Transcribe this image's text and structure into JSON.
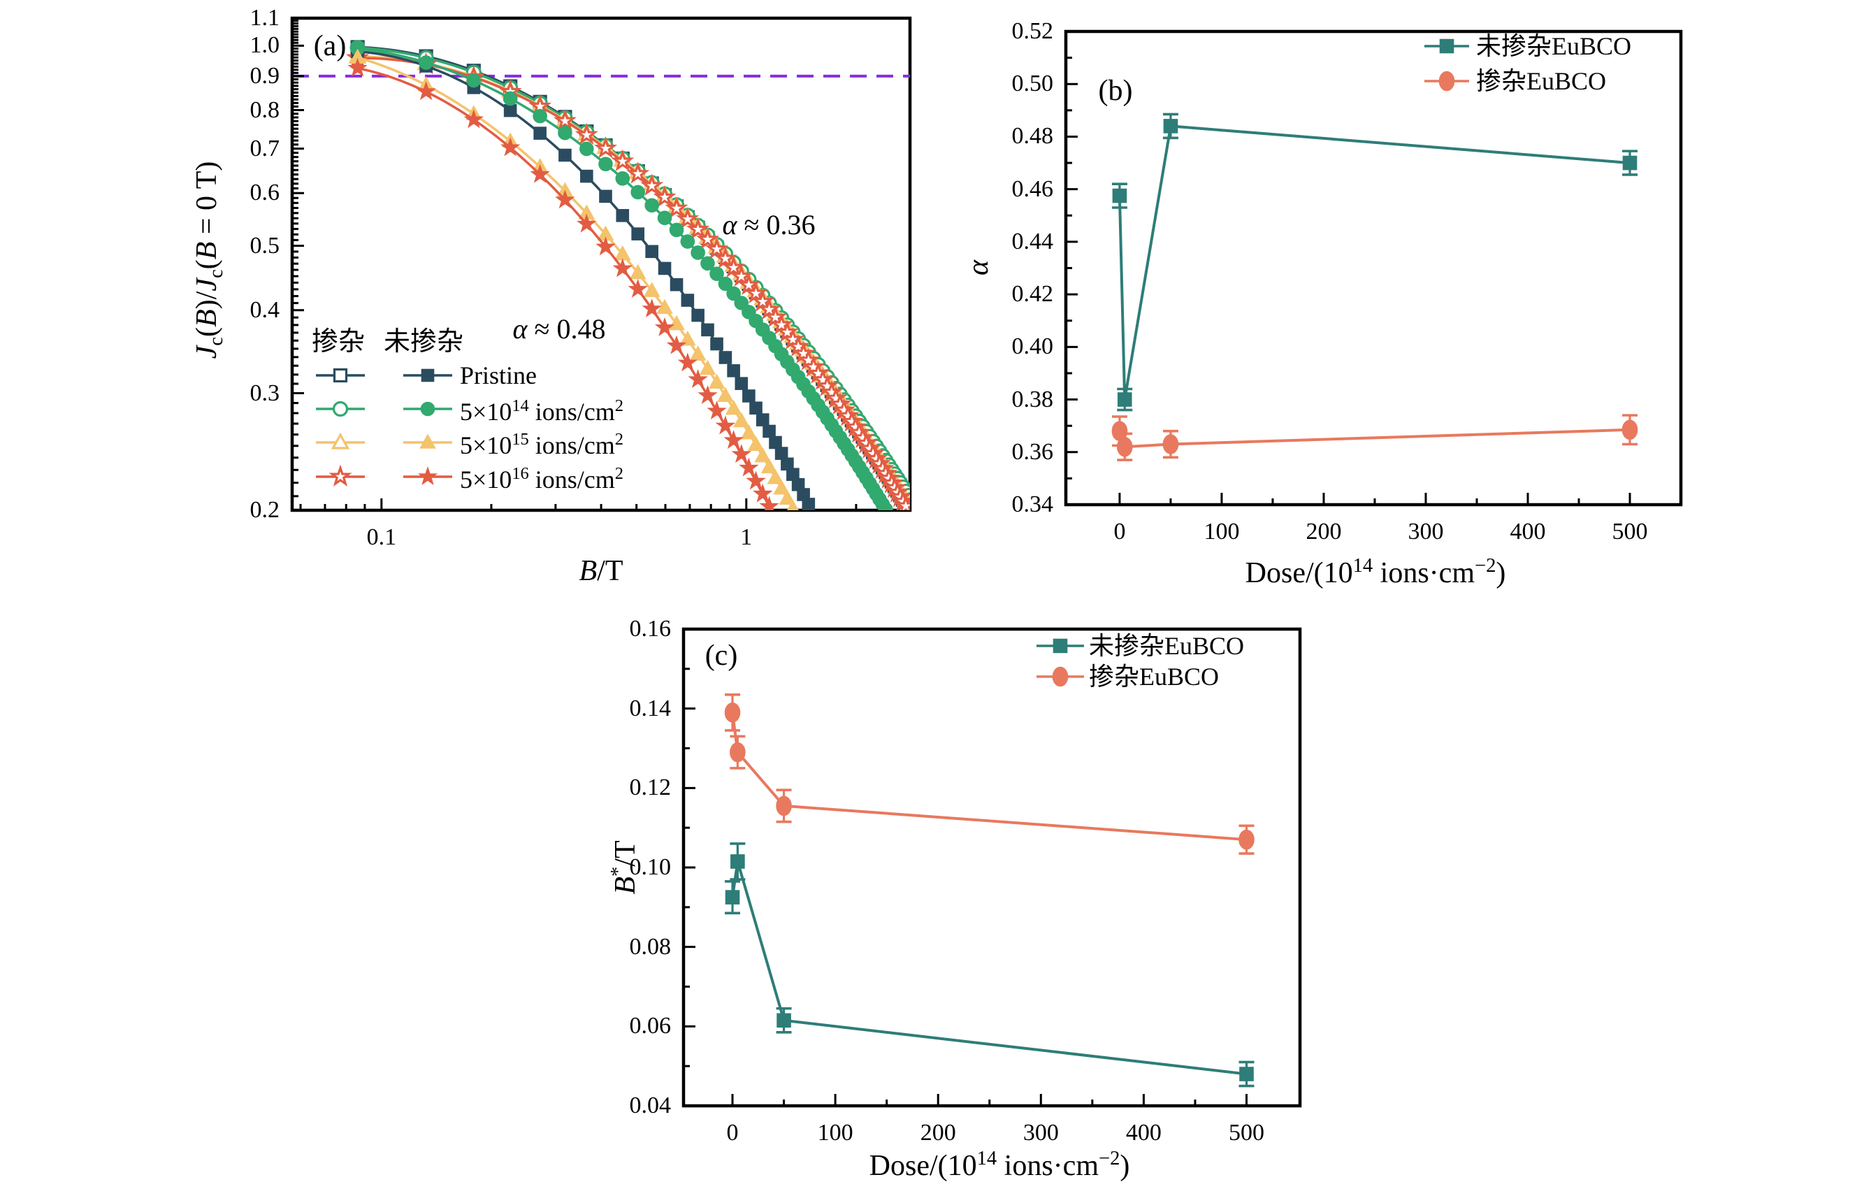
{
  "figure": {
    "background": "#ffffff",
    "description_note": "Three-panel scientific figure: (a) normalized critical current vs magnetic field, (b) alpha exponent vs dose, (c) B* vs dose"
  },
  "colors": {
    "teal": "#2E7D78",
    "orange": "#E8795E",
    "navy": "#2B4C60",
    "green": "#31A96F",
    "yellow": "#F4C36B",
    "red": "#E25C43",
    "purple": "#8A2BE2",
    "axis": "#000000"
  },
  "chart_data": [
    {
      "id": "a",
      "type": "line",
      "panel_label": "(a)",
      "xscale": "log",
      "yscale": "log",
      "xlabel": "B/T",
      "xlabel_rich": [
        {
          "t": "B",
          "i": 1
        },
        {
          "t": "/T"
        }
      ],
      "ylabel": "Jc(B)/Jc(B = 0 T)",
      "ylabel_rich": [
        {
          "t": "J",
          "i": 1
        },
        {
          "t": "c",
          "sub": 1
        },
        {
          "t": "("
        },
        {
          "t": "B",
          "i": 1
        },
        {
          "t": ")/"
        },
        {
          "t": "J",
          "i": 1
        },
        {
          "t": "c",
          "sub": 1
        },
        {
          "t": "("
        },
        {
          "t": "B",
          "i": 1
        },
        {
          "t": " = 0 T)"
        }
      ],
      "xlim": [
        0.0569,
        2.81
      ],
      "ylim": [
        0.2,
        1.1
      ],
      "x_major_ticks": [
        {
          "v": 0.1,
          "label": "0.1"
        },
        {
          "v": 1,
          "label": "1"
        }
      ],
      "x_minor_ticks": [
        0.06,
        0.07,
        0.08,
        0.09,
        0.2,
        0.3,
        0.4,
        0.5,
        0.6,
        0.7,
        0.8,
        0.9,
        2
      ],
      "y_major_ticks": [
        {
          "v": 1.1,
          "label": "1.1"
        },
        {
          "v": 1.0,
          "label": "1.0"
        },
        {
          "v": 0.9,
          "label": "0.9"
        },
        {
          "v": 0.8,
          "label": "0.8"
        },
        {
          "v": 0.7,
          "label": "0.7"
        },
        {
          "v": 0.6,
          "label": "0.6"
        },
        {
          "v": 0.5,
          "label": "0.5"
        },
        {
          "v": 0.4,
          "label": "0.4"
        },
        {
          "v": 0.3,
          "label": "0.3"
        },
        {
          "v": 0.2,
          "label": "0.2"
        }
      ],
      "y_minor_step": 0.01,
      "hline": {
        "y": 0.9,
        "style": "dashed",
        "color_key": "purple"
      },
      "annotations": [
        {
          "text": "α ≈ 0.36",
          "rich": [
            {
              "t": "α",
              "i": 1
            },
            {
              "t": " ≈ 0.36"
            }
          ]
        },
        {
          "text": "α ≈ 0.48",
          "rich": [
            {
              "t": "α",
              "i": 1
            },
            {
              "t": " ≈ 0.48"
            }
          ]
        }
      ],
      "legend": {
        "headers": [
          "掺杂",
          "未掺杂"
        ],
        "rows": [
          {
            "label": "Pristine",
            "label_rich": [
              {
                "t": "Pristine"
              }
            ]
          },
          {
            "label": "5×10^14 ions/cm^2",
            "label_rich": [
              {
                "t": "5×10"
              },
              {
                "t": "14",
                "sup": 1
              },
              {
                "t": " ions/cm"
              },
              {
                "t": "2",
                "sup": 1
              }
            ]
          },
          {
            "label": "5×10^15 ions/cm^2",
            "label_rich": [
              {
                "t": "5×10"
              },
              {
                "t": "15",
                "sup": 1
              },
              {
                "t": " ions/cm"
              },
              {
                "t": "2",
                "sup": 1
              }
            ]
          },
          {
            "label": "5×10^16 ions/cm^2",
            "label_rich": [
              {
                "t": "5×10"
              },
              {
                "t": "16",
                "sup": 1
              },
              {
                "t": " ions/cm"
              },
              {
                "t": "2",
                "sup": 1
              }
            ]
          }
        ]
      },
      "series": [
        {
          "name": "doped-pristine",
          "marker": "square",
          "fill": "open",
          "color_key": "navy",
          "anchors": [
            [
              0.086,
              0.995
            ],
            [
              0.195,
              0.9
            ],
            [
              2.8,
              0.2
            ]
          ]
        },
        {
          "name": "doped-5e14",
          "marker": "circle",
          "fill": "open",
          "color_key": "green",
          "anchors": [
            [
              0.086,
              0.993
            ],
            [
              0.19,
              0.9
            ],
            [
              2.95,
              0.2
            ]
          ]
        },
        {
          "name": "doped-5e15",
          "marker": "triangle",
          "fill": "open",
          "color_key": "yellow",
          "anchors": [
            [
              0.086,
              0.963
            ],
            [
              0.178,
              0.9
            ],
            [
              2.85,
              0.2
            ]
          ]
        },
        {
          "name": "doped-5e16",
          "marker": "star",
          "fill": "open",
          "color_key": "red",
          "anchors": [
            [
              0.086,
              0.958
            ],
            [
              0.175,
              0.9
            ],
            [
              2.78,
              0.2
            ]
          ]
        },
        {
          "name": "undoped-pristine",
          "marker": "square",
          "fill": "filled",
          "color_key": "navy",
          "anchors": [
            [
              0.086,
              0.98
            ],
            [
              0.155,
              0.9
            ],
            [
              1.51,
              0.2
            ]
          ]
        },
        {
          "name": "undoped-5e14",
          "marker": "circle",
          "fill": "filled",
          "color_key": "green",
          "anchors": [
            [
              0.086,
              0.99
            ],
            [
              0.168,
              0.9
            ],
            [
              2.42,
              0.2
            ]
          ]
        },
        {
          "name": "undoped-5e15",
          "marker": "triangle",
          "fill": "filled",
          "color_key": "yellow",
          "anchors": [
            [
              0.086,
              0.96
            ],
            [
              0.118,
              0.9
            ],
            [
              1.35,
              0.2
            ]
          ]
        },
        {
          "name": "undoped-5e16",
          "marker": "star",
          "fill": "filled",
          "color_key": "red",
          "anchors": [
            [
              0.086,
              0.925
            ],
            [
              0.104,
              0.9
            ],
            [
              1.17,
              0.2
            ]
          ]
        }
      ],
      "marker_step_B": 0.0465
    },
    {
      "id": "b",
      "type": "line",
      "panel_label": "(b)",
      "xscale": "linear",
      "yscale": "linear",
      "xlabel": "Dose/(10^14 ions·cm^-2)",
      "xlabel_rich": [
        {
          "t": "Dose/(10"
        },
        {
          "t": "14",
          "sup": 1
        },
        {
          "t": " ions·cm"
        },
        {
          "t": "−2",
          "sup": 1
        },
        {
          "t": ")"
        }
      ],
      "ylabel": "α",
      "ylabel_rich": [
        {
          "t": "α",
          "i": 1
        }
      ],
      "xlim": [
        -52.7,
        550
      ],
      "ylim": [
        0.34,
        0.52
      ],
      "x_major_ticks": [
        {
          "v": 0,
          "label": "0"
        },
        {
          "v": 100,
          "label": "100"
        },
        {
          "v": 200,
          "label": "200"
        },
        {
          "v": 300,
          "label": "300"
        },
        {
          "v": 400,
          "label": "400"
        },
        {
          "v": 500,
          "label": "500"
        }
      ],
      "x_minor_ticks": [
        50,
        150,
        250,
        350,
        450
      ],
      "y_major_ticks": [
        {
          "v": 0.34,
          "label": "0.34"
        },
        {
          "v": 0.36,
          "label": "0.36"
        },
        {
          "v": 0.38,
          "label": "0.38"
        },
        {
          "v": 0.4,
          "label": "0.40"
        },
        {
          "v": 0.42,
          "label": "0.42"
        },
        {
          "v": 0.44,
          "label": "0.44"
        },
        {
          "v": 0.46,
          "label": "0.46"
        },
        {
          "v": 0.48,
          "label": "0.48"
        },
        {
          "v": 0.5,
          "label": "0.50"
        },
        {
          "v": 0.52,
          "label": "0.52"
        }
      ],
      "y_minor_ticks": [
        0.35,
        0.37,
        0.39,
        0.41,
        0.43,
        0.45,
        0.47,
        0.49,
        0.51
      ],
      "series": [
        {
          "name": "undoped-EuBCO",
          "label": "未掺杂EuBCO",
          "marker": "square",
          "color_key": "teal",
          "x": [
            0,
            5,
            50,
            500
          ],
          "y": [
            0.4575,
            0.38,
            0.484,
            0.47
          ],
          "yerr": [
            0.0045,
            0.004,
            0.0045,
            0.0045
          ]
        },
        {
          "name": "doped-EuBCO",
          "label": "掺杂EuBCO",
          "marker": "ellipse",
          "color_key": "orange",
          "x": [
            0,
            5,
            50,
            500
          ],
          "y": [
            0.368,
            0.362,
            0.363,
            0.3685
          ],
          "yerr": [
            0.0055,
            0.005,
            0.005,
            0.0055
          ]
        }
      ]
    },
    {
      "id": "c",
      "type": "line",
      "panel_label": "(c)",
      "xscale": "linear",
      "yscale": "linear",
      "xlabel": "Dose/(10^14 ions·cm^-2)",
      "xlabel_rich": [
        {
          "t": "Dose/(10"
        },
        {
          "t": "14",
          "sup": 1
        },
        {
          "t": " ions·cm"
        },
        {
          "t": "−2",
          "sup": 1
        },
        {
          "t": ")"
        }
      ],
      "ylabel": "B*/T",
      "ylabel_rich": [
        {
          "t": "B",
          "i": 1
        },
        {
          "t": "*",
          "sup": 1
        },
        {
          "t": "/T"
        }
      ],
      "xlim": [
        -47.6,
        552
      ],
      "ylim": [
        0.04,
        0.16
      ],
      "x_major_ticks": [
        {
          "v": 0,
          "label": "0"
        },
        {
          "v": 100,
          "label": "100"
        },
        {
          "v": 200,
          "label": "200"
        },
        {
          "v": 300,
          "label": "300"
        },
        {
          "v": 400,
          "label": "400"
        },
        {
          "v": 500,
          "label": "500"
        }
      ],
      "x_minor_ticks": [
        50,
        150,
        250,
        350,
        450
      ],
      "y_major_ticks": [
        {
          "v": 0.04,
          "label": "0.04"
        },
        {
          "v": 0.06,
          "label": "0.06"
        },
        {
          "v": 0.08,
          "label": "0.08"
        },
        {
          "v": 0.1,
          "label": "0.10"
        },
        {
          "v": 0.12,
          "label": "0.12"
        },
        {
          "v": 0.14,
          "label": "0.14"
        },
        {
          "v": 0.16,
          "label": "0.16"
        }
      ],
      "y_minor_ticks": [
        0.05,
        0.07,
        0.09,
        0.11,
        0.13,
        0.15
      ],
      "series": [
        {
          "name": "undoped-EuBCO",
          "label": "未掺杂EuBCO",
          "marker": "square",
          "color_key": "teal",
          "x": [
            0,
            5,
            50,
            500
          ],
          "y": [
            0.0925,
            0.1015,
            0.0615,
            0.048
          ],
          "yerr": [
            0.004,
            0.0045,
            0.003,
            0.003
          ]
        },
        {
          "name": "doped-EuBCO",
          "label": "掺杂EuBCO",
          "marker": "ellipse",
          "color_key": "orange",
          "x": [
            0,
            5,
            50,
            500
          ],
          "y": [
            0.139,
            0.129,
            0.1155,
            0.107
          ],
          "yerr": [
            0.0045,
            0.004,
            0.004,
            0.0035
          ]
        }
      ]
    }
  ]
}
